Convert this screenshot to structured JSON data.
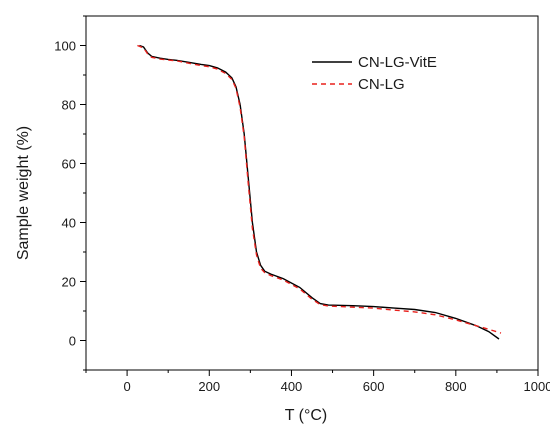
{
  "chart_data": {
    "type": "line",
    "xlabel": "T (°C)",
    "ylabel": "Sample weight (%)",
    "xlim": [
      -100,
      1000
    ],
    "ylim": [
      -10,
      110
    ],
    "xticks": [
      0,
      200,
      400,
      600,
      800,
      1000
    ],
    "yticks": [
      0,
      20,
      40,
      60,
      80,
      100
    ],
    "grid": false,
    "legend_position": "top-right",
    "series": [
      {
        "name": "CN-LG-VitE",
        "color": "#000000",
        "dash": "solid",
        "points": [
          [
            30,
            100
          ],
          [
            40,
            99.5
          ],
          [
            50,
            97.5
          ],
          [
            60,
            96.3
          ],
          [
            80,
            95.7
          ],
          [
            100,
            95.3
          ],
          [
            120,
            95.0
          ],
          [
            150,
            94.3
          ],
          [
            180,
            93.6
          ],
          [
            200,
            93.2
          ],
          [
            220,
            92.4
          ],
          [
            240,
            91.0
          ],
          [
            255,
            89.0
          ],
          [
            265,
            86.0
          ],
          [
            275,
            80.0
          ],
          [
            285,
            70.0
          ],
          [
            295,
            55.0
          ],
          [
            305,
            40.0
          ],
          [
            315,
            30.0
          ],
          [
            325,
            25.5
          ],
          [
            335,
            23.5
          ],
          [
            350,
            22.5
          ],
          [
            380,
            21.0
          ],
          [
            420,
            18.0
          ],
          [
            450,
            14.5
          ],
          [
            470,
            12.5
          ],
          [
            490,
            12.0
          ],
          [
            550,
            11.8
          ],
          [
            600,
            11.5
          ],
          [
            650,
            11.0
          ],
          [
            700,
            10.5
          ],
          [
            750,
            9.5
          ],
          [
            800,
            7.5
          ],
          [
            850,
            5.0
          ],
          [
            880,
            3.0
          ],
          [
            905,
            0.5
          ]
        ]
      },
      {
        "name": "CN-LG",
        "color": "#e8201c",
        "dash": "dashed",
        "points": [
          [
            25,
            100
          ],
          [
            40,
            99.2
          ],
          [
            50,
            97.2
          ],
          [
            60,
            96.0
          ],
          [
            80,
            95.4
          ],
          [
            100,
            95.1
          ],
          [
            120,
            94.8
          ],
          [
            150,
            94.0
          ],
          [
            180,
            93.2
          ],
          [
            200,
            92.8
          ],
          [
            220,
            92.0
          ],
          [
            240,
            90.5
          ],
          [
            255,
            88.5
          ],
          [
            265,
            85.5
          ],
          [
            275,
            79.0
          ],
          [
            285,
            69.0
          ],
          [
            295,
            53.0
          ],
          [
            305,
            38.0
          ],
          [
            315,
            29.0
          ],
          [
            325,
            24.5
          ],
          [
            335,
            23.0
          ],
          [
            350,
            22.0
          ],
          [
            380,
            20.5
          ],
          [
            420,
            17.5
          ],
          [
            450,
            14.0
          ],
          [
            470,
            12.2
          ],
          [
            490,
            11.7
          ],
          [
            550,
            11.3
          ],
          [
            600,
            11.0
          ],
          [
            650,
            10.3
          ],
          [
            700,
            9.7
          ],
          [
            750,
            8.7
          ],
          [
            800,
            7.0
          ],
          [
            850,
            5.0
          ],
          [
            880,
            3.8
          ],
          [
            910,
            2.5
          ]
        ]
      }
    ]
  }
}
